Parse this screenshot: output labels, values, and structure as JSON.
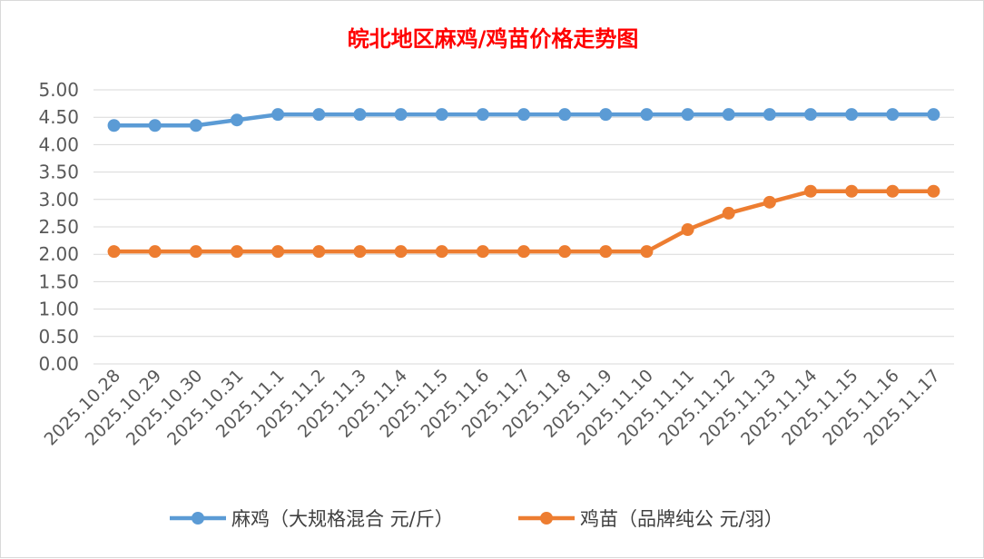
{
  "chart_data": {
    "type": "line",
    "title": "皖北地区麻鸡/鸡苗价格走势图",
    "xlabel": "",
    "ylabel": "",
    "ylim": [
      0,
      5
    ],
    "yticks": [
      "0.00",
      "0.50",
      "1.00",
      "1.50",
      "2.00",
      "2.50",
      "3.00",
      "3.50",
      "4.00",
      "4.50",
      "5.00"
    ],
    "grid": true,
    "legend_position": "bottom",
    "categories": [
      "2025.10.28",
      "2025.10.29",
      "2025.10.30",
      "2025.10.31",
      "2025.11.1",
      "2025.11.2",
      "2025.11.3",
      "2025.11.4",
      "2025.11.5",
      "2025.11.6",
      "2025.11.7",
      "2025.11.8",
      "2025.11.9",
      "2025.11.10",
      "2025.11.11",
      "2025.11.12",
      "2025.11.13",
      "2025.11.14",
      "2025.11.15",
      "2025.11.16",
      "2025.11.17"
    ],
    "series": [
      {
        "name": "麻鸡（大规格混合 元/斤）",
        "color": "#5b9bd5",
        "values": [
          4.35,
          4.35,
          4.35,
          4.45,
          4.55,
          4.55,
          4.55,
          4.55,
          4.55,
          4.55,
          4.55,
          4.55,
          4.55,
          4.55,
          4.55,
          4.55,
          4.55,
          4.55,
          4.55,
          4.55,
          4.55
        ]
      },
      {
        "name": "鸡苗（品牌纯公 元/羽）",
        "color": "#ed7d31",
        "values": [
          2.05,
          2.05,
          2.05,
          2.05,
          2.05,
          2.05,
          2.05,
          2.05,
          2.05,
          2.05,
          2.05,
          2.05,
          2.05,
          2.05,
          2.45,
          2.75,
          2.95,
          3.15,
          3.15,
          3.15,
          3.15
        ]
      }
    ]
  }
}
